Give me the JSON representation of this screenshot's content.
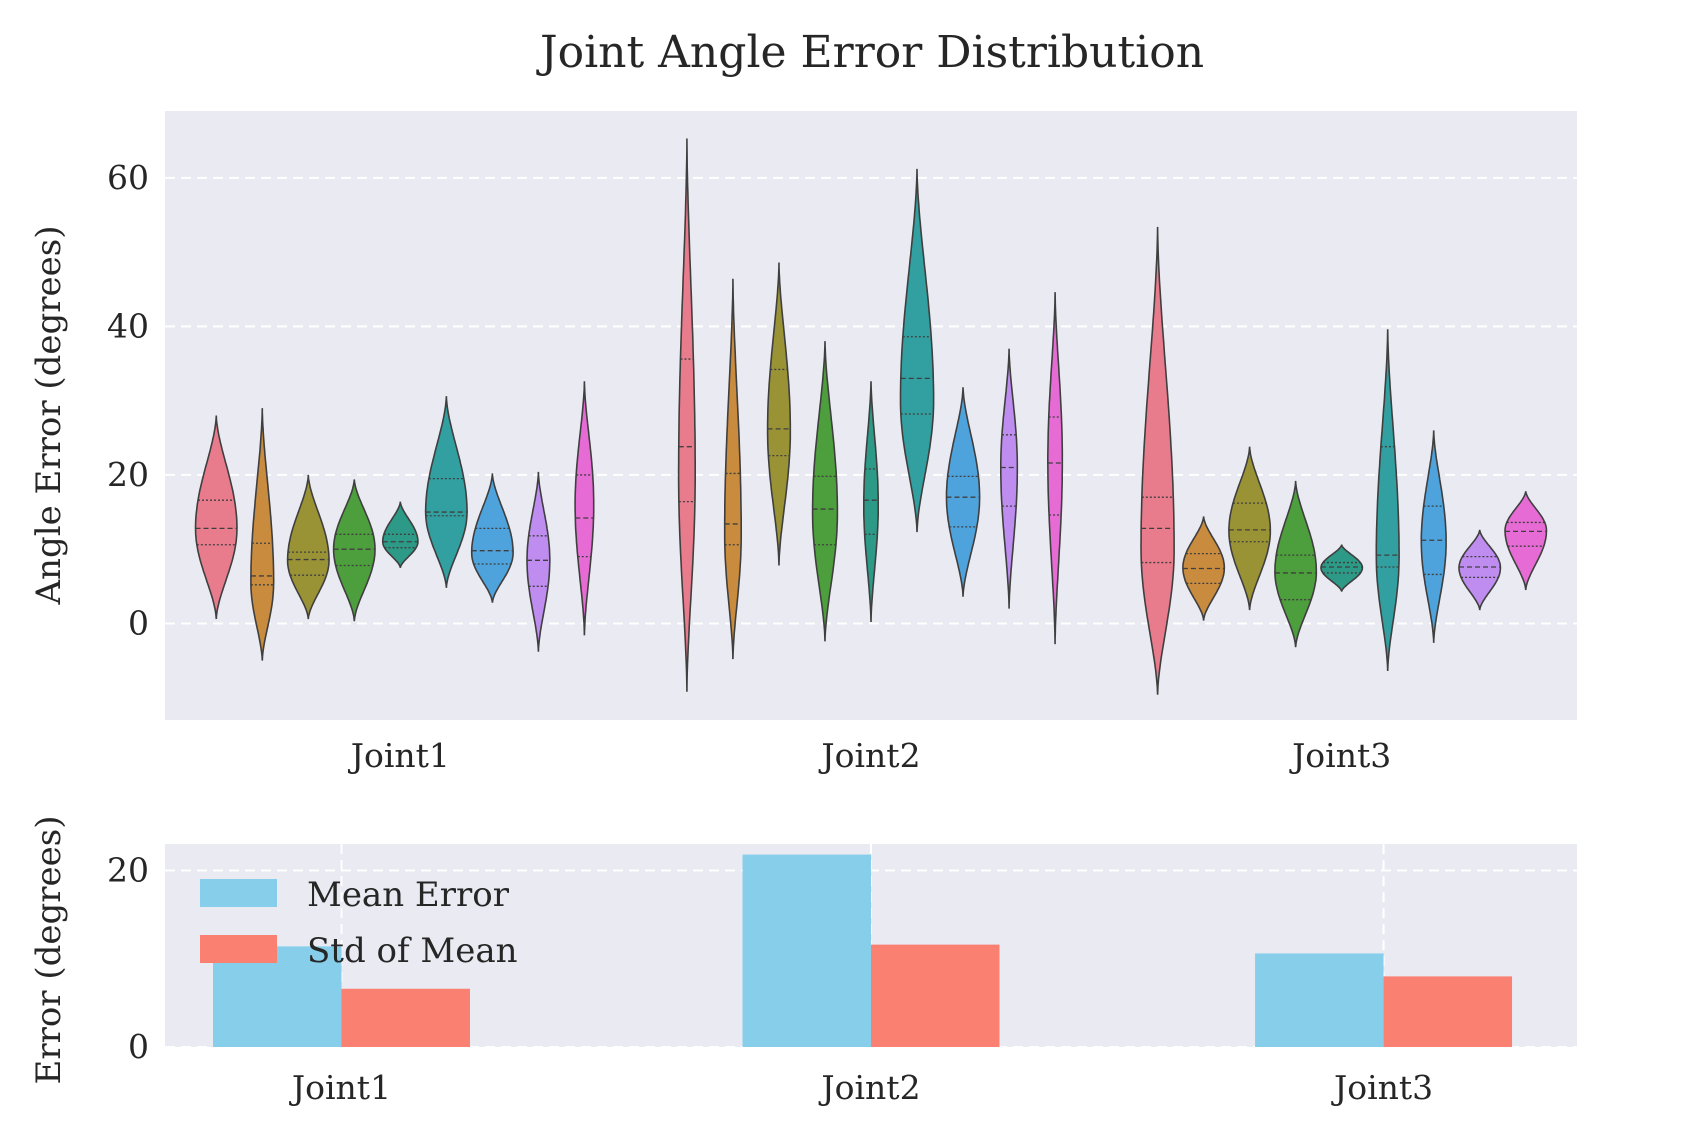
{
  "chart_data": [
    {
      "type": "violin",
      "title": "Joint Angle Error Distribution",
      "xlabel": "",
      "ylabel": "Angle Error (degrees)",
      "ylim": [
        -13,
        69
      ],
      "yticks": [
        0,
        20,
        40,
        60
      ],
      "grid": true,
      "categories": [
        "Joint1",
        "Joint2",
        "Joint3"
      ],
      "palette": [
        "#e87c8d",
        "#c98b3e",
        "#9a9335",
        "#4d9e3c",
        "#2c9a86",
        "#32a0a0",
        "#4ea3dc",
        "#bf8cf0",
        "#e76bd5"
      ],
      "violins": [
        {
          "category": "Joint1",
          "min": 0.6,
          "max": 28.0,
          "peak": 12.8,
          "width": 1.0,
          "quartiles": [
            10.6,
            12.8,
            16.6
          ]
        },
        {
          "category": "Joint1",
          "min": -5.0,
          "max": 29.0,
          "peak": 5.5,
          "width": 0.55,
          "quartiles": [
            5.2,
            6.4,
            10.8
          ]
        },
        {
          "category": "Joint1",
          "min": 0.6,
          "max": 20.0,
          "peak": 8.5,
          "width": 1.0,
          "quartiles": [
            6.5,
            8.6,
            9.6
          ]
        },
        {
          "category": "Joint1",
          "min": 0.3,
          "max": 19.4,
          "peak": 10.0,
          "width": 1.0,
          "quartiles": [
            7.8,
            10.0,
            12.0
          ]
        },
        {
          "category": "Joint1",
          "min": 7.5,
          "max": 16.4,
          "peak": 11.0,
          "width": 0.85,
          "quartiles": [
            10.2,
            11.0,
            12.0
          ]
        },
        {
          "category": "Joint1",
          "min": 4.8,
          "max": 30.6,
          "peak": 15.0,
          "width": 1.0,
          "quartiles": [
            14.5,
            15.0,
            19.5
          ]
        },
        {
          "category": "Joint1",
          "min": 2.8,
          "max": 20.2,
          "peak": 9.5,
          "width": 1.0,
          "quartiles": [
            8.0,
            9.8,
            12.8
          ]
        },
        {
          "category": "Joint1",
          "min": -3.8,
          "max": 20.4,
          "peak": 8.5,
          "width": 0.55,
          "quartiles": [
            5.0,
            8.5,
            11.8
          ]
        },
        {
          "category": "Joint1",
          "min": -1.6,
          "max": 32.6,
          "peak": 16.0,
          "width": 0.45,
          "quartiles": [
            9.0,
            14.2,
            20.0
          ]
        },
        {
          "category": "Joint2",
          "min": -9.2,
          "max": 65.3,
          "peak": 20.0,
          "width": 0.4,
          "quartiles": [
            16.4,
            23.8,
            35.6
          ]
        },
        {
          "category": "Joint2",
          "min": -4.8,
          "max": 46.4,
          "peak": 12.0,
          "width": 0.4,
          "quartiles": [
            10.6,
            13.4,
            20.2
          ]
        },
        {
          "category": "Joint2",
          "min": 7.8,
          "max": 48.6,
          "peak": 26.0,
          "width": 0.55,
          "quartiles": [
            22.6,
            26.2,
            34.2
          ]
        },
        {
          "category": "Joint2",
          "min": -2.4,
          "max": 38.0,
          "peak": 15.0,
          "width": 0.6,
          "quartiles": [
            10.6,
            15.4,
            19.8
          ]
        },
        {
          "category": "Joint2",
          "min": 0.2,
          "max": 32.6,
          "peak": 16.0,
          "width": 0.35,
          "quartiles": [
            12.0,
            16.6,
            20.8
          ]
        },
        {
          "category": "Joint2",
          "min": 12.3,
          "max": 61.2,
          "peak": 30.0,
          "width": 0.8,
          "quartiles": [
            28.2,
            33.0,
            38.6
          ]
        },
        {
          "category": "Joint2",
          "min": 3.6,
          "max": 31.8,
          "peak": 17.0,
          "width": 0.8,
          "quartiles": [
            13.0,
            17.0,
            19.8
          ]
        },
        {
          "category": "Joint2",
          "min": 2.0,
          "max": 37.0,
          "peak": 21.0,
          "width": 0.4,
          "quartiles": [
            15.8,
            21.0,
            25.4
          ]
        },
        {
          "category": "Joint2",
          "min": -2.8,
          "max": 44.6,
          "peak": 22.0,
          "width": 0.35,
          "quartiles": [
            14.6,
            21.6,
            27.8
          ]
        },
        {
          "category": "Joint3",
          "min": -9.6,
          "max": 53.4,
          "peak": 10.0,
          "width": 0.8,
          "quartiles": [
            8.2,
            12.8,
            17.0
          ]
        },
        {
          "category": "Joint3",
          "min": 0.4,
          "max": 14.4,
          "peak": 7.5,
          "width": 1.0,
          "quartiles": [
            5.4,
            7.4,
            9.4
          ]
        },
        {
          "category": "Joint3",
          "min": 1.8,
          "max": 23.8,
          "peak": 12.5,
          "width": 1.0,
          "quartiles": [
            11.0,
            12.6,
            16.2
          ]
        },
        {
          "category": "Joint3",
          "min": -3.2,
          "max": 19.2,
          "peak": 7.0,
          "width": 1.0,
          "quartiles": [
            3.2,
            6.8,
            9.2
          ]
        },
        {
          "category": "Joint3",
          "min": 4.3,
          "max": 10.6,
          "peak": 7.5,
          "width": 1.0,
          "quartiles": [
            6.8,
            7.6,
            8.2
          ]
        },
        {
          "category": "Joint3",
          "min": -6.4,
          "max": 39.6,
          "peak": 9.0,
          "width": 0.55,
          "quartiles": [
            7.6,
            9.2,
            23.8
          ]
        },
        {
          "category": "Joint3",
          "min": -2.6,
          "max": 26.0,
          "peak": 11.0,
          "width": 0.6,
          "quartiles": [
            6.6,
            11.2,
            15.8
          ]
        },
        {
          "category": "Joint3",
          "min": 1.8,
          "max": 12.6,
          "peak": 7.5,
          "width": 1.0,
          "quartiles": [
            6.2,
            7.6,
            9.0
          ]
        },
        {
          "category": "Joint3",
          "min": 4.5,
          "max": 17.8,
          "peak": 12.5,
          "width": 1.0,
          "quartiles": [
            10.4,
            12.4,
            13.6
          ]
        }
      ]
    },
    {
      "type": "bar",
      "ylabel": "Error (degrees)",
      "xlabel": "",
      "ylim": [
        0,
        23
      ],
      "yticks": [
        0,
        20
      ],
      "grid": true,
      "categories": [
        "Joint1",
        "Joint2",
        "Joint3"
      ],
      "series": [
        {
          "name": "Mean Error",
          "color": "#87ceeb",
          "values": [
            11.4,
            21.8,
            10.6
          ]
        },
        {
          "name": "Std of Mean",
          "color": "#fa8072",
          "values": [
            6.6,
            11.6,
            8.0
          ]
        }
      ],
      "legend": "upper-left"
    }
  ]
}
